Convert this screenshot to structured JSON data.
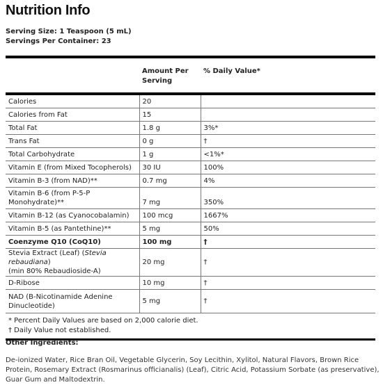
{
  "title": "Nutrition Info",
  "serving_size": "Serving Size: 1 Teaspoon (5 mL)",
  "servings_per_container": "Servings Per Container: 23",
  "headers": {
    "amount_line1": "Amount Per",
    "amount_line2": "Serving",
    "dv": "% Daily Value*"
  },
  "rows": [
    {
      "name": "Calories",
      "amount": "20",
      "dv": ""
    },
    {
      "name": "Calories from Fat",
      "amount": "15",
      "dv": ""
    },
    {
      "name": "Total Fat",
      "amount": "1.8 g",
      "dv": "3%*"
    },
    {
      "name": "Trans Fat",
      "amount": "0 g",
      "dv": "†"
    },
    {
      "name": "Total Carbohydrate",
      "amount": "1 g",
      "dv": "<1%*"
    },
    {
      "name": "Vitamin E (from Mixed Tocopherols)",
      "amount": "30 IU",
      "dv": "100%"
    },
    {
      "name": "Vitamin B-3 (from NAD)**",
      "amount": "0.7 mg",
      "dv": "4%"
    },
    {
      "name": "Vitamin B-6 (from P-5-P Monohydrate)**",
      "amount": "7 mg",
      "dv": "350%"
    },
    {
      "name": "Vitamin B-12 (as Cyanocobalamin)",
      "amount": "100 mcg",
      "dv": "1667%"
    },
    {
      "name": "Vitamin B-5 (as Pantethine)**",
      "amount": "5 mg",
      "dv": "50%"
    },
    {
      "name": "Coenzyme Q10 (CoQ10)",
      "amount": "100 mg",
      "dv": "†"
    },
    {
      "name_line1_prefix": "Stevia Extract (Leaf) (",
      "name_line1_italic": "Stevia rebaudiana",
      "name_line1_suffix": ")",
      "name_line2": "(min 80% Rebaudioside-A)",
      "amount": "20 mg",
      "dv": "†"
    },
    {
      "name": "D-Ribose",
      "amount": "10 mg",
      "dv": "†"
    },
    {
      "name_line1": "NAD (B-Nicotinamide Adenine",
      "name_line2": "Dinucleotide)",
      "amount": "5 mg",
      "dv": "†"
    }
  ],
  "footnotes": [
    "* Percent Daily Values are based on 2,000 calorie diet.",
    "† Daily Value not established."
  ],
  "other_ingredients_heading": "Other Ingredients:",
  "other_ingredients_text": "De-ionized Water, Rice Bran Oil, Vegetable Glycerin, Soy Lecithin, Xylitol, Natural Flavors, Brown Rice Protein, Rosemary Extract (Rosmarinus officianalis) (Leaf), Citric Acid, Potassium Sorbate (as preservative), Guar Gum and Maltodextrin."
}
